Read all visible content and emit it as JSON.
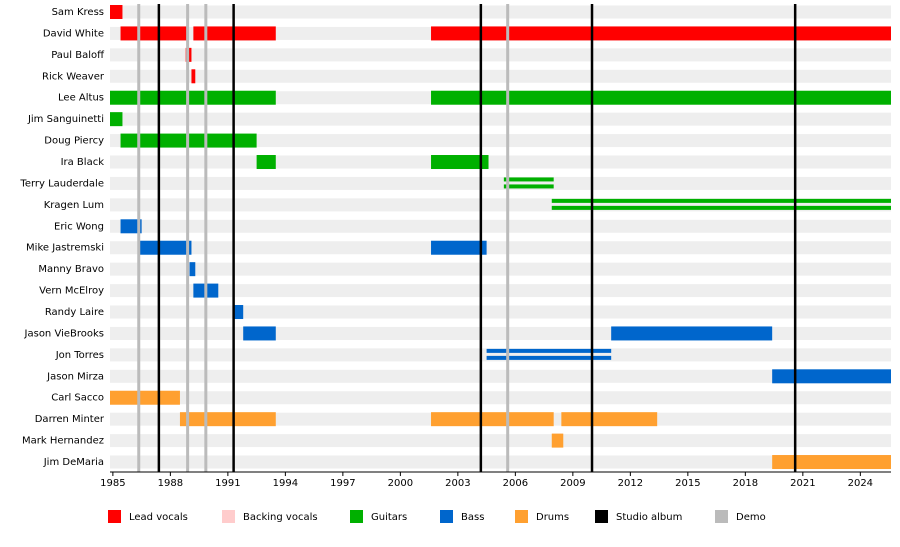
{
  "chart_data": {
    "type": "timeline",
    "xlim": [
      1984.85,
      2025.6
    ],
    "xticks": [
      1985,
      1988,
      1991,
      1994,
      1997,
      2000,
      2003,
      2006,
      2009,
      2012,
      2015,
      2018,
      2021,
      2024
    ],
    "roles": [
      {
        "name": "Lead vocals",
        "color": "#ff0000"
      },
      {
        "name": "Backing vocals",
        "color": "#ffcccc"
      },
      {
        "name": "Guitars",
        "color": "#00b000"
      },
      {
        "name": "Bass",
        "color": "#0066cc"
      },
      {
        "name": "Drums",
        "color": "#ffa030"
      },
      {
        "name": "Studio album",
        "color": "#000000"
      },
      {
        "name": "Demo",
        "color": "#bbbbbb"
      }
    ],
    "studio_albums": [
      1987.4,
      1991.3,
      2004.2,
      2010.0,
      2020.6
    ],
    "demos": [
      1986.35,
      1988.9,
      1989.85,
      2005.6
    ],
    "members": [
      {
        "name": "Sam Kress",
        "periods": [
          {
            "role": 0,
            "start": 1984.85,
            "end": 1985.5
          }
        ]
      },
      {
        "name": "David White",
        "periods": [
          {
            "role": 0,
            "start": 1985.4,
            "end": 1988.9
          },
          {
            "role": 0,
            "start": 1989.2,
            "end": 1993.5
          },
          {
            "role": 0,
            "start": 2001.6,
            "end": 2025.6
          }
        ]
      },
      {
        "name": "Paul Baloff",
        "periods": [
          {
            "role": 0,
            "start": 1988.8,
            "end": 1989.1
          }
        ]
      },
      {
        "name": "Rick Weaver",
        "periods": [
          {
            "role": 0,
            "start": 1989.1,
            "end": 1989.3
          }
        ]
      },
      {
        "name": "Lee Altus",
        "periods": [
          {
            "role": 2,
            "start": 1984.85,
            "end": 1993.5
          },
          {
            "role": 2,
            "start": 2001.6,
            "end": 2025.6
          }
        ]
      },
      {
        "name": "Jim Sanguinetti",
        "periods": [
          {
            "role": 2,
            "start": 1984.85,
            "end": 1985.5
          }
        ]
      },
      {
        "name": "Doug Piercy",
        "periods": [
          {
            "role": 2,
            "start": 1985.4,
            "end": 1992.5
          }
        ]
      },
      {
        "name": "Ira Black",
        "periods": [
          {
            "role": 2,
            "start": 1992.5,
            "end": 1993.5
          },
          {
            "role": 2,
            "start": 2001.6,
            "end": 2004.6
          }
        ]
      },
      {
        "name": "Terry Lauderdale",
        "periods": [
          {
            "role": 2,
            "start": 2005.4,
            "end": 2008.0,
            "style": "double"
          }
        ]
      },
      {
        "name": "Kragen Lum",
        "periods": [
          {
            "role": 2,
            "start": 2007.9,
            "end": 2025.6,
            "style": "double"
          }
        ]
      },
      {
        "name": "Eric Wong",
        "periods": [
          {
            "role": 3,
            "start": 1985.4,
            "end": 1986.5
          }
        ]
      },
      {
        "name": "Mike Jastremski",
        "periods": [
          {
            "role": 3,
            "start": 1986.4,
            "end": 1989.1
          },
          {
            "role": 3,
            "start": 2001.6,
            "end": 2004.5
          }
        ]
      },
      {
        "name": "Manny Bravo",
        "periods": [
          {
            "role": 3,
            "start": 1989.0,
            "end": 1989.3
          }
        ]
      },
      {
        "name": "Vern McElroy",
        "periods": [
          {
            "role": 3,
            "start": 1989.2,
            "end": 1990.5
          }
        ]
      },
      {
        "name": "Randy Laire",
        "periods": [
          {
            "role": 3,
            "start": 1991.3,
            "end": 1991.8
          }
        ]
      },
      {
        "name": "Jason VieBrooks",
        "periods": [
          {
            "role": 3,
            "start": 1991.8,
            "end": 1993.5
          },
          {
            "role": 3,
            "start": 2011.0,
            "end": 2019.4
          }
        ]
      },
      {
        "name": "Jon Torres",
        "periods": [
          {
            "role": 3,
            "start": 2004.5,
            "end": 2011.0,
            "style": "double"
          }
        ]
      },
      {
        "name": "Jason Mirza",
        "periods": [
          {
            "role": 3,
            "start": 2019.4,
            "end": 2025.6
          }
        ]
      },
      {
        "name": "Carl Sacco",
        "periods": [
          {
            "role": 4,
            "start": 1984.85,
            "end": 1988.5
          }
        ]
      },
      {
        "name": "Darren Minter",
        "periods": [
          {
            "role": 4,
            "start": 1988.5,
            "end": 1993.5
          },
          {
            "role": 4,
            "start": 2001.6,
            "end": 2008.0
          },
          {
            "role": 4,
            "start": 2008.4,
            "end": 2013.4
          }
        ]
      },
      {
        "name": "Mark Hernandez",
        "periods": [
          {
            "role": 4,
            "start": 2007.9,
            "end": 2008.5
          }
        ]
      },
      {
        "name": "Jim DeMaria",
        "periods": [
          {
            "role": 4,
            "start": 2019.4,
            "end": 2025.6
          }
        ]
      }
    ]
  }
}
